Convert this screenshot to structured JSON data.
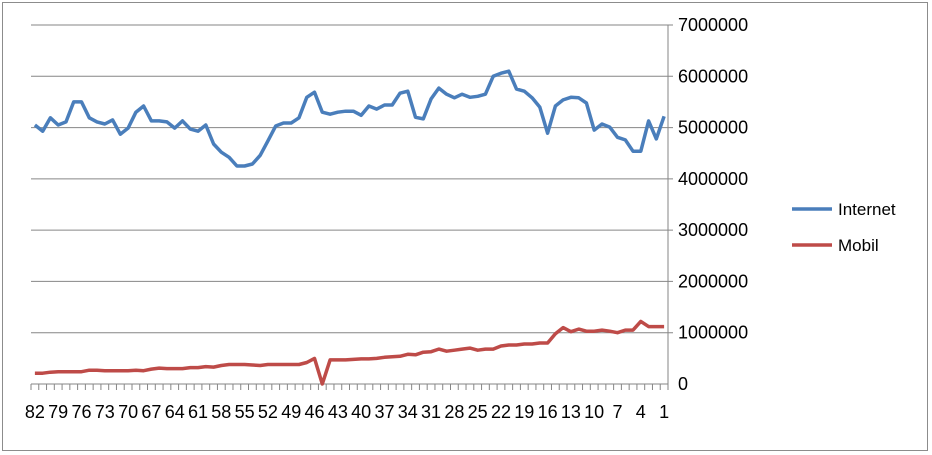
{
  "chart_data": {
    "type": "line",
    "title": "",
    "xlabel": "",
    "ylabel": "",
    "categories": [
      82,
      81,
      80,
      79,
      78,
      77,
      76,
      75,
      74,
      73,
      72,
      71,
      70,
      69,
      68,
      67,
      66,
      65,
      64,
      63,
      62,
      61,
      60,
      59,
      58,
      57,
      56,
      55,
      54,
      53,
      52,
      51,
      50,
      49,
      48,
      47,
      46,
      45,
      44,
      43,
      42,
      41,
      40,
      39,
      38,
      37,
      36,
      35,
      34,
      33,
      32,
      31,
      30,
      29,
      28,
      27,
      26,
      25,
      24,
      23,
      22,
      21,
      20,
      19,
      18,
      17,
      16,
      15,
      14,
      13,
      12,
      11,
      10,
      9,
      8,
      7,
      6,
      5,
      4,
      3,
      2,
      1
    ],
    "x_tick_labels": [
      "82",
      "79",
      "76",
      "73",
      "70",
      "67",
      "64",
      "61",
      "58",
      "55",
      "52",
      "49",
      "46",
      "43",
      "40",
      "37",
      "34",
      "31",
      "28",
      "25",
      "22",
      "19",
      "16",
      "13",
      "10",
      "7",
      "4",
      "1"
    ],
    "ylim": [
      0,
      7000000
    ],
    "y_ticks": [
      0,
      1000000,
      2000000,
      3000000,
      4000000,
      5000000,
      6000000,
      7000000
    ],
    "y_axis_position": "right",
    "grid": "horizontal",
    "legend_position": "right",
    "series": [
      {
        "name": "Internet",
        "color": "#4a7ebb",
        "values": [
          5050000,
          4930000,
          5190000,
          5050000,
          5110000,
          5500000,
          5500000,
          5190000,
          5110000,
          5070000,
          5150000,
          4870000,
          4990000,
          5300000,
          5420000,
          5130000,
          5130000,
          5110000,
          4990000,
          5130000,
          4970000,
          4930000,
          5050000,
          4680000,
          4520000,
          4420000,
          4250000,
          4250000,
          4290000,
          4460000,
          4740000,
          5030000,
          5090000,
          5090000,
          5190000,
          5590000,
          5690000,
          5300000,
          5260000,
          5300000,
          5320000,
          5320000,
          5240000,
          5420000,
          5360000,
          5440000,
          5440000,
          5670000,
          5710000,
          5200000,
          5170000,
          5560000,
          5770000,
          5650000,
          5580000,
          5650000,
          5590000,
          5610000,
          5650000,
          6000000,
          6060000,
          6100000,
          5750000,
          5710000,
          5580000,
          5400000,
          4890000,
          5420000,
          5540000,
          5590000,
          5580000,
          5480000,
          4950000,
          5070000,
          5010000,
          4810000,
          4760000,
          4540000,
          4540000,
          5130000,
          4780000,
          5220000
        ]
      },
      {
        "name": "Mobil",
        "color": "#be4b48",
        "values": [
          210000,
          210000,
          230000,
          240000,
          240000,
          240000,
          240000,
          270000,
          270000,
          260000,
          260000,
          260000,
          260000,
          270000,
          260000,
          290000,
          310000,
          300000,
          300000,
          300000,
          320000,
          320000,
          340000,
          330000,
          360000,
          380000,
          380000,
          380000,
          370000,
          360000,
          380000,
          380000,
          380000,
          380000,
          380000,
          420000,
          500000,
          0,
          470000,
          470000,
          470000,
          480000,
          490000,
          490000,
          500000,
          520000,
          530000,
          540000,
          580000,
          570000,
          620000,
          630000,
          680000,
          640000,
          660000,
          680000,
          700000,
          660000,
          680000,
          680000,
          740000,
          760000,
          760000,
          780000,
          780000,
          800000,
          800000,
          980000,
          1100000,
          1020000,
          1070000,
          1030000,
          1030000,
          1050000,
          1030000,
          1000000,
          1050000,
          1050000,
          1220000,
          1120000,
          1120000,
          1120000
        ]
      }
    ]
  }
}
